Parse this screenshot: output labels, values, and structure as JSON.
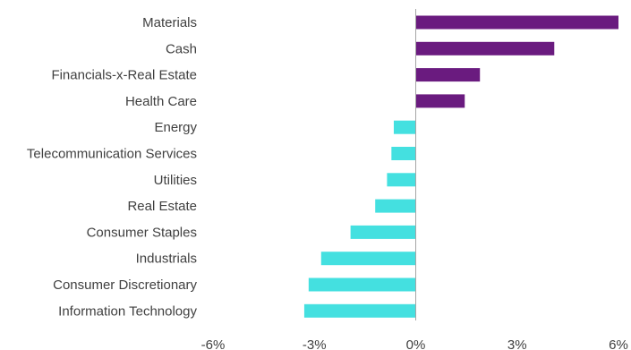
{
  "chart_data": {
    "type": "bar",
    "orientation": "horizontal",
    "categories": [
      "Materials",
      "Cash",
      "Financials-x-Real Estate",
      "Health Care",
      "Energy",
      "Telecommunication Services",
      "Utilities",
      "Real Estate",
      "Consumer Staples",
      "Industrials",
      "Consumer Discretionary",
      "Information Technology"
    ],
    "values": [
      6.0,
      4.1,
      1.9,
      1.45,
      -0.65,
      -0.72,
      -0.85,
      -1.2,
      -1.93,
      -2.8,
      -3.17,
      -3.3
    ],
    "xlim": [
      -6,
      6
    ],
    "xticks": [
      -6,
      -3,
      0,
      3,
      6
    ],
    "xtick_labels": [
      "-6%",
      "-3%",
      "0%",
      "3%",
      "6%"
    ],
    "title": "",
    "xlabel": "",
    "ylabel": "",
    "grid": false,
    "legend": "none",
    "colors": {
      "positive": "#6A1B7F",
      "negative": "#44E0E0",
      "axis": "#A6A6A6",
      "text": "#404040"
    }
  }
}
